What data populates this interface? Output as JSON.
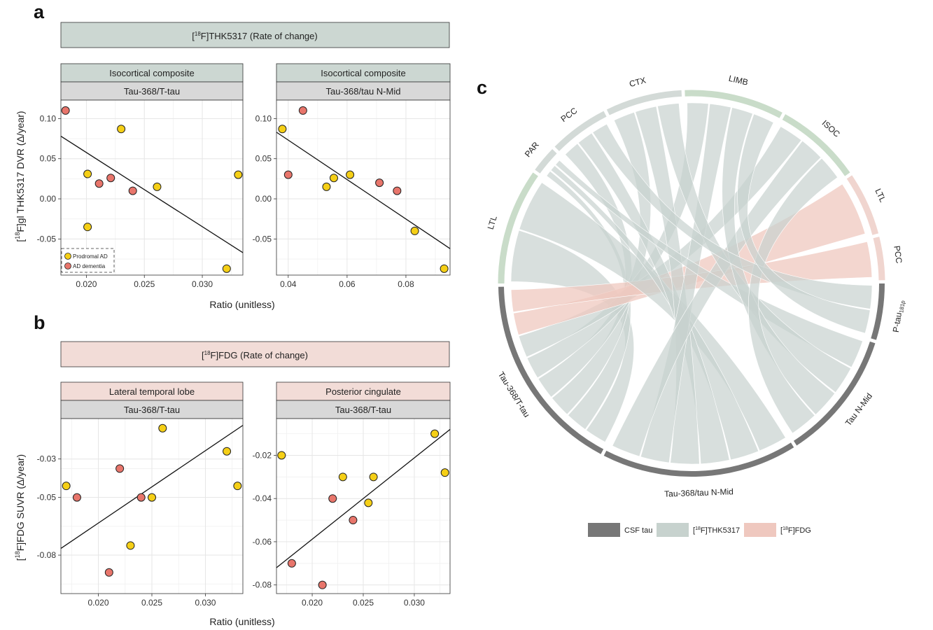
{
  "panel_letters": {
    "a": "a",
    "b": "b",
    "c": "c"
  },
  "panel_a": {
    "header": {
      "pre": "[",
      "sup": "18",
      "post": "F]THK5317 (Rate of change)"
    },
    "ylabel": {
      "pre": "[",
      "sup": "18",
      "post": "F]gl THK5317 DVR (Δ/year)"
    },
    "xlabel": "Ratio (unitless)",
    "legend": {
      "prodromal": "Prodromal AD",
      "dementia": "AD dementia"
    }
  },
  "panel_b": {
    "header": {
      "pre": "[",
      "sup": "18",
      "post": "F]FDG (Rate of change)"
    },
    "ylabel": {
      "pre": "[",
      "sup": "18",
      "post": "F]FDG SUVR (Δ/year)"
    },
    "xlabel": "Ratio (unitless)"
  },
  "colors": {
    "prodromal": "#F5CF16",
    "dementia": "#E8756B",
    "thk_strip": "#CCD7D2",
    "fdg_strip": "#F2DCD7",
    "sub_strip": "#D8D8D8",
    "grid": "#E6E6E6",
    "csf_tau": "#777777",
    "thk": "#C7D2CE",
    "thk_ring": "#D3DAD7",
    "thk_green": "#C9DCC9",
    "fdg": "#EFC8BF",
    "fdg_ring": "#F0D5CF"
  },
  "chart_data": [
    {
      "type": "scatter",
      "strip_title": "Isocortical composite",
      "strip_subtitle": "Tau-368/T-tau",
      "xlim": [
        0.0178,
        0.0335
      ],
      "ylim": [
        -0.095,
        0.123
      ],
      "xticks": [
        0.02,
        0.025,
        0.03
      ],
      "xtick_labels": [
        "0.020",
        "0.025",
        "0.030"
      ],
      "yticks": [
        -0.05,
        0.0,
        0.05,
        0.1
      ],
      "ytick_labels": [
        "-0.05",
        "0.00",
        "0.05",
        "0.10"
      ],
      "prodromal": [
        [
          0.0201,
          0.031
        ],
        [
          0.023,
          0.087
        ],
        [
          0.0201,
          -0.035
        ],
        [
          0.0261,
          0.015
        ],
        [
          0.0331,
          0.03
        ],
        [
          0.0321,
          -0.087
        ]
      ],
      "dementia": [
        [
          0.0182,
          0.11
        ],
        [
          0.0221,
          0.026
        ],
        [
          0.0211,
          0.019
        ],
        [
          0.024,
          0.01
        ]
      ],
      "fit": [
        [
          0.0178,
          0.078
        ],
        [
          0.0335,
          -0.067
        ]
      ]
    },
    {
      "type": "scatter",
      "strip_title": "Isocortical composite",
      "strip_subtitle": "Tau-368/tau N-Mid",
      "xlim": [
        0.036,
        0.095
      ],
      "ylim": [
        -0.095,
        0.123
      ],
      "xticks": [
        0.04,
        0.06,
        0.08
      ],
      "xtick_labels": [
        "0.04",
        "0.06",
        "0.08"
      ],
      "yticks": [
        -0.05,
        0.0,
        0.05,
        0.1
      ],
      "ytick_labels": [
        "-0.05",
        "0.00",
        "0.05",
        "0.10"
      ],
      "prodromal": [
        [
          0.038,
          0.087
        ],
        [
          0.053,
          0.015
        ],
        [
          0.0555,
          0.026
        ],
        [
          0.061,
          0.03
        ],
        [
          0.083,
          -0.04
        ],
        [
          0.093,
          -0.087
        ]
      ],
      "dementia": [
        [
          0.045,
          0.11
        ],
        [
          0.04,
          0.03
        ],
        [
          0.071,
          0.02
        ],
        [
          0.077,
          0.01
        ]
      ],
      "fit": [
        [
          0.036,
          0.083
        ],
        [
          0.095,
          -0.062
        ]
      ]
    },
    {
      "type": "scatter",
      "strip_title": "Lateral temporal lobe",
      "strip_subtitle": "Tau-368/T-tau",
      "xlim": [
        0.0165,
        0.0335
      ],
      "ylim": [
        -0.1,
        -0.009
      ],
      "xticks": [
        0.02,
        0.025,
        0.03
      ],
      "xtick_labels": [
        "0.020",
        "0.025",
        "0.030"
      ],
      "yticks": [
        -0.08,
        -0.05,
        -0.03
      ],
      "ytick_labels": [
        "-0.08",
        "-0.05",
        "-0.03"
      ],
      "prodromal": [
        [
          0.017,
          -0.044
        ],
        [
          0.023,
          -0.075
        ],
        [
          0.025,
          -0.05
        ],
        [
          0.026,
          -0.014
        ],
        [
          0.032,
          -0.026
        ],
        [
          0.033,
          -0.044
        ]
      ],
      "dementia": [
        [
          0.018,
          -0.05
        ],
        [
          0.021,
          -0.089
        ],
        [
          0.022,
          -0.035
        ],
        [
          0.024,
          -0.05
        ]
      ],
      "fit": [
        [
          0.0165,
          -0.0765
        ],
        [
          0.0335,
          -0.0125
        ]
      ]
    },
    {
      "type": "scatter",
      "strip_title": "Posterior cingulate",
      "strip_subtitle": "Tau-368/T-tau",
      "xlim": [
        0.0165,
        0.0335
      ],
      "ylim": [
        -0.084,
        -0.003
      ],
      "xticks": [
        0.02,
        0.025,
        0.03
      ],
      "xtick_labels": [
        "0.020",
        "0.025",
        "0.030"
      ],
      "yticks": [
        -0.08,
        -0.06,
        -0.04,
        -0.02
      ],
      "ytick_labels": [
        "-0.08",
        "-0.06",
        "-0.04",
        "-0.02"
      ],
      "prodromal": [
        [
          0.017,
          -0.02
        ],
        [
          0.023,
          -0.03
        ],
        [
          0.0255,
          -0.042
        ],
        [
          0.026,
          -0.03
        ],
        [
          0.032,
          -0.01
        ],
        [
          0.033,
          -0.028
        ]
      ],
      "dementia": [
        [
          0.018,
          -0.07
        ],
        [
          0.021,
          -0.08
        ],
        [
          0.022,
          -0.04
        ],
        [
          0.024,
          -0.05
        ]
      ],
      "fit": [
        [
          0.0165,
          -0.072
        ],
        [
          0.0335,
          -0.008
        ]
      ]
    },
    {
      "type": "chord",
      "csf_labels": [
        "P-tau181p",
        "Tau N-Mid",
        "Tau-368/tau N-Mid",
        "Tau-368/T-tau"
      ],
      "csf_label_text": {
        "ptau_main": "P-tau",
        "ptau_sub": "181p"
      },
      "thk_labels": [
        "LTL",
        "PAR",
        "PCC",
        "CTX",
        "LIMB",
        "ISOC"
      ],
      "fdg_labels": [
        "LTL",
        "PCC"
      ],
      "links": [
        [
          "Tau-368/T-tau",
          "LTL"
        ],
        [
          "Tau-368/T-tau",
          "PAR"
        ],
        [
          "Tau-368/T-tau",
          "PCC"
        ],
        [
          "Tau-368/T-tau",
          "CTX"
        ],
        [
          "Tau-368/T-tau",
          "LIMB"
        ],
        [
          "Tau-368/T-tau",
          "ISOC"
        ],
        [
          "Tau-368/T-tau",
          "FDG LTL"
        ],
        [
          "Tau-368/T-tau",
          "FDG PCC"
        ],
        [
          "Tau-368/tau N-Mid",
          "LTL"
        ],
        [
          "Tau-368/tau N-Mid",
          "PAR"
        ],
        [
          "Tau-368/tau N-Mid",
          "PCC"
        ],
        [
          "Tau-368/tau N-Mid",
          "CTX"
        ],
        [
          "Tau-368/tau N-Mid",
          "LIMB"
        ],
        [
          "Tau-368/tau N-Mid",
          "ISOC"
        ],
        [
          "Tau N-Mid",
          "PAR"
        ],
        [
          "Tau N-Mid",
          "CTX"
        ],
        [
          "Tau N-Mid",
          "LIMB"
        ],
        [
          "Tau N-Mid",
          "ISOC"
        ],
        [
          "P-tau181p",
          "PCC"
        ],
        [
          "P-tau181p",
          "LIMB"
        ]
      ],
      "legend": [
        {
          "label": "CSF tau",
          "color_key": "csf_tau"
        },
        {
          "label": "THK5317",
          "prefix": "[",
          "sup": "18",
          "mid": "F]",
          "color_key": "thk"
        },
        {
          "label": "FDG",
          "prefix": "[",
          "sup": "18",
          "mid": "F]",
          "color_key": "fdg"
        }
      ]
    }
  ]
}
